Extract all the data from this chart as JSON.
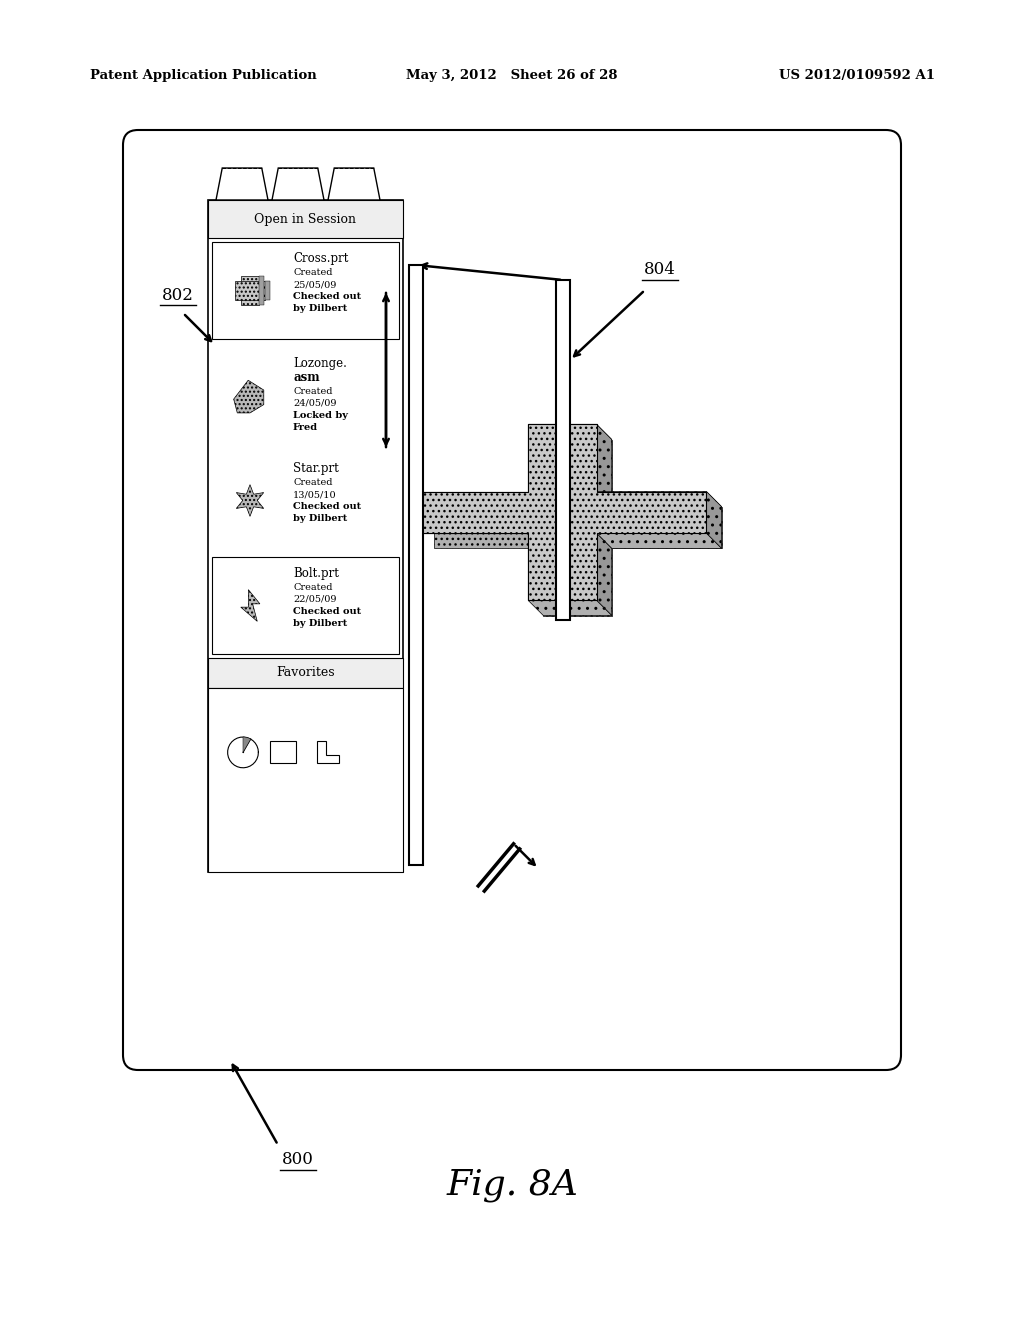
{
  "bg_color": "#ffffff",
  "header_left": "Patent Application Publication",
  "header_mid": "May 3, 2012   Sheet 26 of 28",
  "header_right": "US 2012/0109592 A1",
  "fig_label": "Fig. 8A",
  "label_800": "800",
  "label_802": "802",
  "label_804": "804",
  "gray_fill": "#c8c8c8",
  "gray_fill2": "#b0b0b0",
  "gray_fill3": "#989898"
}
